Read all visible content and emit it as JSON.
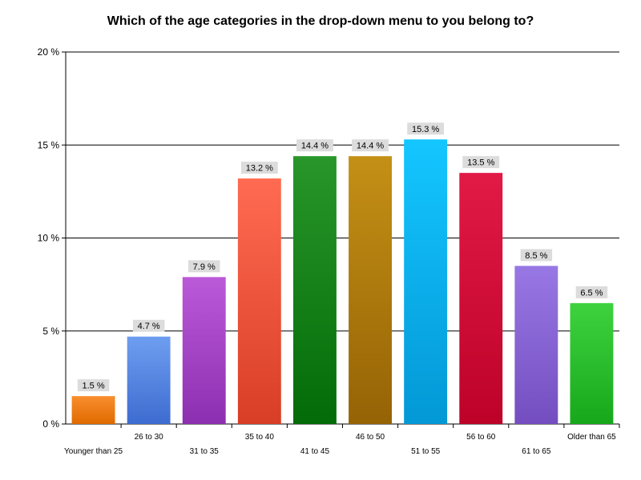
{
  "chart_data": {
    "type": "bar",
    "title": "Which of the age categories in the drop-down menu to you belong to?",
    "xlabel": "",
    "ylabel": "",
    "ylim": [
      0,
      20
    ],
    "yticks": [
      0,
      5,
      10,
      15,
      20
    ],
    "ytick_labels": [
      "0 %",
      "5 %",
      "10 %",
      "15 %",
      "20 %"
    ],
    "grid": true,
    "legend": "none",
    "categories": [
      "Younger than 25",
      "26 to 30",
      "31 to 35",
      "35 to 40",
      "41 to 45",
      "46 to 50",
      "51 to 55",
      "56 to 60",
      "61 to 65",
      "Older than 65"
    ],
    "values": [
      1.5,
      4.7,
      7.9,
      13.2,
      14.4,
      14.4,
      15.3,
      13.5,
      8.5,
      6.5
    ],
    "data_labels": [
      "1.5 %",
      "4.7 %",
      "7.9 %",
      "13.2 %",
      "14.4 %",
      "14.4 %",
      "15.3 %",
      "13.5 %",
      "8.5 %",
      "6.5 %"
    ],
    "colors": [
      [
        "#f98e2e",
        "#e06a00"
      ],
      [
        "#6e9ef0",
        "#3d6cd0"
      ],
      [
        "#bb5ad9",
        "#8c2fb0"
      ],
      [
        "#ff6b52",
        "#d83e25"
      ],
      [
        "#28962a",
        "#036b07"
      ],
      [
        "#c49016",
        "#956305"
      ],
      [
        "#14c6ff",
        "#0398d6"
      ],
      [
        "#e11a46",
        "#bd0228"
      ],
      [
        "#9878e4",
        "#744ec0"
      ],
      [
        "#3fd23f",
        "#16a81a"
      ]
    ]
  }
}
